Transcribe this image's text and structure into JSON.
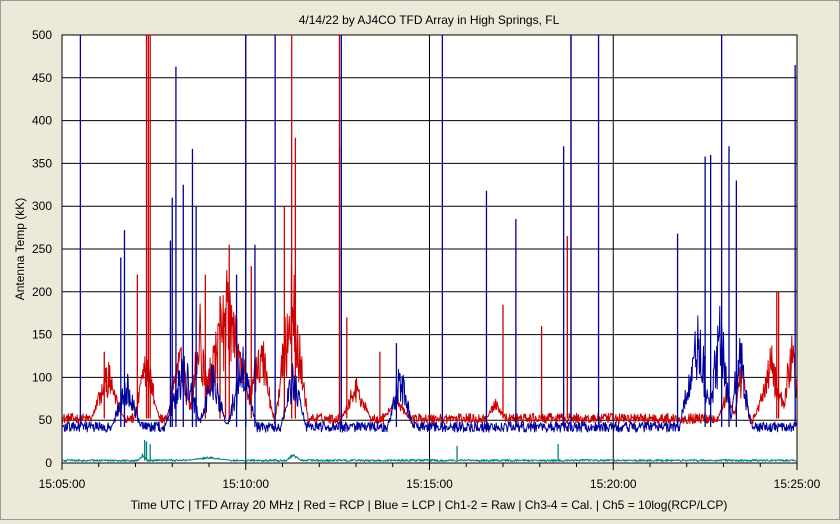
{
  "chart_data": {
    "type": "line",
    "title": "4/14/22  by  AJ4CO TFD Array  in  High Springs, FL",
    "xlabel": "Time UTC | TFD Array 20 MHz | Red = RCP | Blue = LCP | Ch1-2 = Raw | Ch3-4 = Cal. | Ch5 = 10log(RCP/LCP)",
    "ylabel": "Antenna Temp (kK)",
    "ylim": [
      0,
      500
    ],
    "y_ticks": [
      "0",
      "50",
      "100",
      "150",
      "200",
      "250",
      "300",
      "350",
      "400",
      "450",
      "500"
    ],
    "x_range_min": [
      0,
      20
    ],
    "x_ticks": [
      "15:05:00",
      "15:10:00",
      "15:15:00",
      "15:20:00",
      "15:25:00"
    ],
    "grid": true,
    "series": [
      {
        "name": "RCP",
        "color": "#cc0000",
        "baseline": 52,
        "baseline_noise": 6,
        "bursts": [
          {
            "t": 1.25,
            "peak": 125,
            "width": 0.45
          },
          {
            "t": 2.3,
            "peak": 140,
            "width": 0.35
          },
          {
            "t": 3.2,
            "peak": 150,
            "width": 0.35
          },
          {
            "t": 3.75,
            "peak": 190,
            "width": 0.3
          },
          {
            "t": 4.5,
            "peak": 230,
            "width": 0.8
          },
          {
            "t": 5.4,
            "peak": 180,
            "width": 0.35
          },
          {
            "t": 6.25,
            "peak": 250,
            "width": 0.45
          },
          {
            "t": 8.0,
            "peak": 105,
            "width": 0.4
          },
          {
            "t": 9.1,
            "peak": 85,
            "width": 0.35
          },
          {
            "t": 11.8,
            "peak": 80,
            "width": 0.25
          },
          {
            "t": 18.1,
            "peak": 95,
            "width": 0.25
          },
          {
            "t": 18.5,
            "peak": 130,
            "width": 0.2
          },
          {
            "t": 19.3,
            "peak": 140,
            "width": 0.45
          },
          {
            "t": 19.85,
            "peak": 170,
            "width": 0.25
          }
        ],
        "spikes": [
          {
            "t": 1.15,
            "v": 130
          },
          {
            "t": 2.05,
            "v": 220
          },
          {
            "t": 2.3,
            "v": 500
          },
          {
            "t": 2.35,
            "v": 500
          },
          {
            "t": 2.4,
            "v": 500
          },
          {
            "t": 3.9,
            "v": 220
          },
          {
            "t": 4.3,
            "v": 195
          },
          {
            "t": 4.45,
            "v": 175
          },
          {
            "t": 4.55,
            "v": 255
          },
          {
            "t": 5.15,
            "v": 230
          },
          {
            "t": 6.05,
            "v": 300
          },
          {
            "t": 6.25,
            "v": 500
          },
          {
            "t": 6.35,
            "v": 380
          },
          {
            "t": 7.55,
            "v": 500
          },
          {
            "t": 7.6,
            "v": 370
          },
          {
            "t": 7.75,
            "v": 170
          },
          {
            "t": 8.65,
            "v": 130
          },
          {
            "t": 12.0,
            "v": 185
          },
          {
            "t": 13.05,
            "v": 160
          },
          {
            "t": 13.75,
            "v": 265
          },
          {
            "t": 13.85,
            "v": 500
          },
          {
            "t": 19.5,
            "v": 200
          },
          {
            "t": 19.45,
            "v": 200
          }
        ]
      },
      {
        "name": "LCP",
        "color": "#00009a",
        "baseline": 42,
        "baseline_noise": 6,
        "bursts": [
          {
            "t": 1.75,
            "peak": 110,
            "width": 0.4
          },
          {
            "t": 3.3,
            "peak": 140,
            "width": 0.5
          },
          {
            "t": 4.1,
            "peak": 120,
            "width": 0.4
          },
          {
            "t": 4.9,
            "peak": 150,
            "width": 0.4
          },
          {
            "t": 6.3,
            "peak": 125,
            "width": 0.35
          },
          {
            "t": 9.2,
            "peak": 125,
            "width": 0.35
          },
          {
            "t": 17.3,
            "peak": 180,
            "width": 0.5
          },
          {
            "t": 17.9,
            "peak": 200,
            "width": 0.35
          },
          {
            "t": 18.45,
            "peak": 160,
            "width": 0.3
          }
        ],
        "spikes": [
          {
            "t": 0.5,
            "v": 500
          },
          {
            "t": 1.6,
            "v": 240
          },
          {
            "t": 1.7,
            "v": 272
          },
          {
            "t": 2.95,
            "v": 260
          },
          {
            "t": 3.1,
            "v": 463
          },
          {
            "t": 3.3,
            "v": 325
          },
          {
            "t": 3.55,
            "v": 367
          },
          {
            "t": 3.65,
            "v": 300
          },
          {
            "t": 3.0,
            "v": 310
          },
          {
            "t": 4.75,
            "v": 220
          },
          {
            "t": 5.0,
            "v": 500
          },
          {
            "t": 5.25,
            "v": 255
          },
          {
            "t": 5.8,
            "v": 500
          },
          {
            "t": 7.6,
            "v": 500
          },
          {
            "t": 9.1,
            "v": 140
          },
          {
            "t": 10.35,
            "v": 500
          },
          {
            "t": 11.55,
            "v": 318
          },
          {
            "t": 12.35,
            "v": 285
          },
          {
            "t": 13.65,
            "v": 370
          },
          {
            "t": 13.85,
            "v": 500
          },
          {
            "t": 14.6,
            "v": 500
          },
          {
            "t": 16.75,
            "v": 268
          },
          {
            "t": 17.5,
            "v": 358
          },
          {
            "t": 17.65,
            "v": 360
          },
          {
            "t": 17.95,
            "v": 500
          },
          {
            "t": 18.15,
            "v": 370
          },
          {
            "t": 18.35,
            "v": 330
          },
          {
            "t": 19.95,
            "v": 465
          }
        ]
      },
      {
        "name": "Ch5",
        "color": "#008080",
        "baseline": 3,
        "baseline_noise": 1.2,
        "bursts": [
          {
            "t": 2.2,
            "peak": 12,
            "width": 0.12
          },
          {
            "t": 4.0,
            "peak": 8,
            "width": 0.6
          },
          {
            "t": 6.3,
            "peak": 12,
            "width": 0.2
          }
        ],
        "spikes": [
          {
            "t": 2.25,
            "v": 27
          },
          {
            "t": 2.3,
            "v": 25
          },
          {
            "t": 2.4,
            "v": 22
          },
          {
            "t": 10.75,
            "v": 20
          },
          {
            "t": 13.5,
            "v": 22
          }
        ]
      }
    ]
  }
}
